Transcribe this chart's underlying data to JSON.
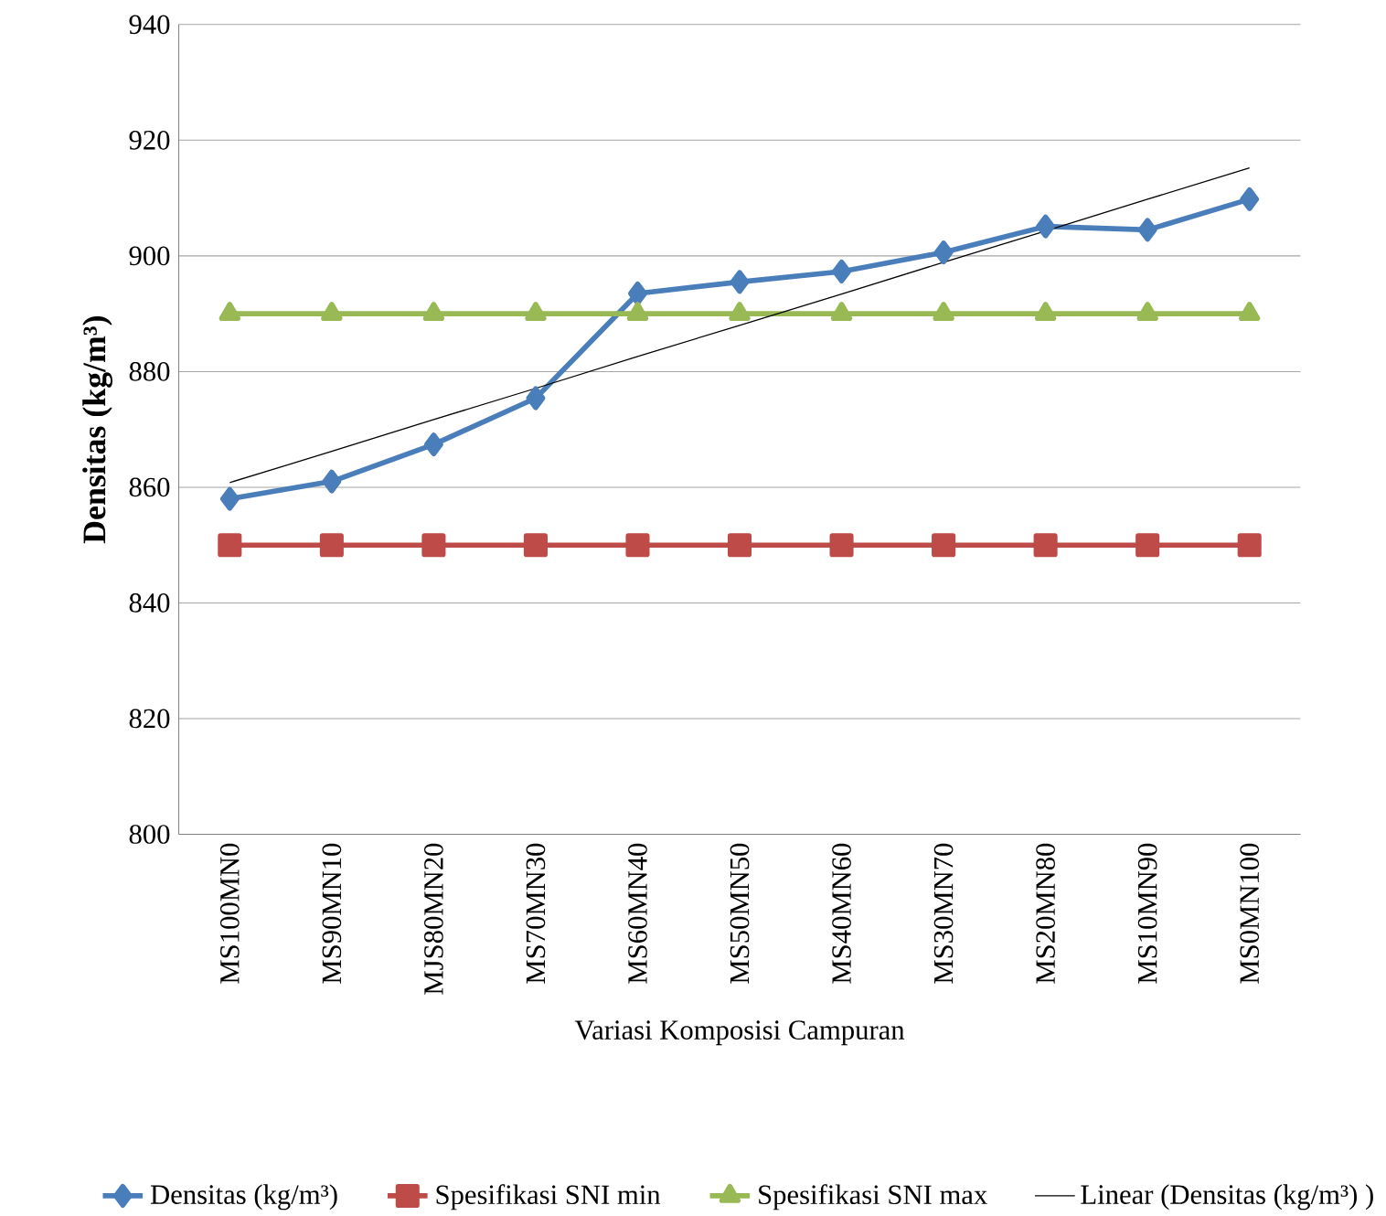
{
  "chart_data": {
    "type": "line",
    "xlabel": "Variasi Komposisi Campuran",
    "ylabel": "Densitas (kg/m³)",
    "categories": [
      "MS100MN0",
      "MS90MN10",
      "MJS80MN20",
      "MS70MN30",
      "MS60MN40",
      "MS50MN50",
      "MS40MN60",
      "MS30MN70",
      "MS20MN80",
      "MS10MN90",
      "MS0MN100"
    ],
    "series": [
      {
        "name": "Densitas (kg/m³)",
        "color": "#4a7ebb",
        "marker": "diamond",
        "values": [
          858.0,
          861.0,
          867.4,
          875.4,
          893.5,
          895.5,
          897.3,
          900.6,
          905.1,
          904.5,
          909.8
        ]
      },
      {
        "name": "Spesifikasi SNI min",
        "color": "#be4b48",
        "marker": "square",
        "values": [
          850,
          850,
          850,
          850,
          850,
          850,
          850,
          850,
          850,
          850,
          850
        ]
      },
      {
        "name": "Spesifikasi SNI max",
        "color": "#98b954",
        "marker": "triangle",
        "values": [
          890,
          890,
          890,
          890,
          890,
          890,
          890,
          890,
          890,
          890,
          890
        ]
      },
      {
        "name": "Linear (Densitas (kg/m³) )",
        "color": "#000000",
        "marker": "none",
        "values": [
          860.8,
          866.2,
          871.7,
          877.1,
          882.6,
          888.0,
          893.4,
          898.9,
          904.3,
          909.8,
          915.2
        ]
      }
    ],
    "ylim": [
      800,
      940
    ],
    "yticks": [
      800,
      820,
      840,
      860,
      880,
      900,
      920,
      940
    ],
    "grid": "y",
    "legend": "bottom"
  }
}
